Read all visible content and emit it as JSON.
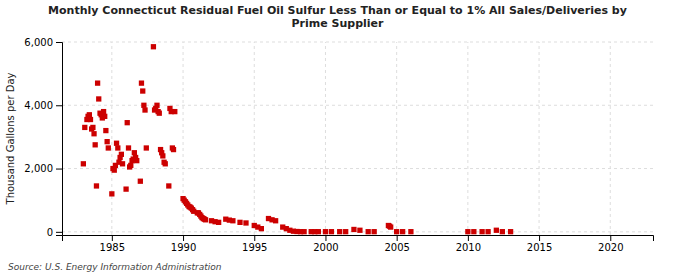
{
  "chart_data": {
    "type": "scatter",
    "title": "Monthly Connecticut Residual Fuel Oil Sulfur Less Than or Equal to 1% All Sales/Deliveries by\nPrime Supplier",
    "ylabel": "Thousand Gallons per Day",
    "source": "Source: U.S. Energy Information Administration",
    "color": "#cc0000",
    "marker": "square",
    "grid": true,
    "xlim": [
      1981.5,
      2023
    ],
    "ylim": [
      -100,
      6000
    ],
    "xticks": [
      1985,
      1990,
      1995,
      2000,
      2005,
      2010,
      2015,
      2020
    ],
    "yticks": [
      0,
      {
        "value": 2000,
        "label": "2,000"
      },
      {
        "value": 4000,
        "label": "4,000"
      },
      {
        "value": 6000,
        "label": "6,000"
      }
    ],
    "x": [
      1983.0,
      1983.1,
      1983.25,
      1983.33,
      1983.42,
      1983.5,
      1983.58,
      1983.67,
      1983.75,
      1983.83,
      1983.92,
      1984.0,
      1984.08,
      1984.17,
      1984.25,
      1984.33,
      1984.42,
      1984.5,
      1984.58,
      1984.67,
      1984.75,
      1985.0,
      1985.08,
      1985.17,
      1985.25,
      1985.33,
      1985.42,
      1985.5,
      1985.58,
      1985.67,
      1985.75,
      1986.0,
      1986.08,
      1986.17,
      1986.25,
      1986.33,
      1986.42,
      1986.5,
      1986.58,
      1986.67,
      1986.75,
      1987.0,
      1987.08,
      1987.17,
      1987.25,
      1987.33,
      1987.42,
      1987.92,
      1988.0,
      1988.08,
      1988.17,
      1988.25,
      1988.33,
      1988.42,
      1988.5,
      1988.58,
      1988.67,
      1988.75,
      1989.0,
      1989.08,
      1989.17,
      1989.25,
      1989.33,
      1989.42,
      1990.0,
      1990.08,
      1990.17,
      1990.25,
      1990.33,
      1990.42,
      1990.5,
      1990.58,
      1990.67,
      1990.75,
      1991.0,
      1991.08,
      1991.17,
      1991.25,
      1991.33,
      1991.42,
      1991.5,
      1991.58,
      1992.0,
      1992.25,
      1992.5,
      1993.0,
      1993.25,
      1993.5,
      1994.0,
      1994.42,
      1995.0,
      1995.25,
      1995.5,
      1996.0,
      1996.25,
      1996.5,
      1997.0,
      1997.25,
      1997.5,
      1997.75,
      1998.0,
      1998.25,
      1998.5,
      1999.0,
      1999.25,
      1999.5,
      2000.0,
      2000.42,
      2001.0,
      2001.42,
      2002.0,
      2002.42,
      2003.0,
      2003.42,
      2004.42,
      2004.5,
      2004.58,
      2005.0,
      2005.42,
      2006.0,
      2010.0,
      2010.42,
      2011.0,
      2011.42,
      2012.0,
      2012.42,
      2013.0
    ],
    "values": [
      2150,
      3300,
      3550,
      3650,
      3700,
      3550,
      3250,
      3300,
      3100,
      2750,
      1450,
      4700,
      4200,
      3750,
      3700,
      3600,
      3800,
      3650,
      3200,
      2850,
      2650,
      1200,
      2000,
      1950,
      2100,
      2800,
      2650,
      2200,
      2350,
      2450,
      2150,
      1350,
      3450,
      2650,
      2050,
      2100,
      2250,
      2300,
      2500,
      2350,
      2250,
      1600,
      4700,
      4450,
      4000,
      3850,
      2650,
      5850,
      3850,
      3900,
      4000,
      3800,
      3750,
      2600,
      2500,
      2400,
      2200,
      2150,
      1450,
      3900,
      3800,
      2650,
      2600,
      3800,
      1050,
      1000,
      950,
      900,
      850,
      800,
      780,
      750,
      700,
      650,
      600,
      600,
      550,
      500,
      450,
      420,
      400,
      380,
      350,
      320,
      300,
      400,
      370,
      350,
      300,
      280,
      200,
      150,
      100,
      420,
      380,
      350,
      150,
      100,
      50,
      20,
      10,
      5,
      5,
      5,
      5,
      5,
      5,
      5,
      5,
      5,
      75,
      50,
      5,
      5,
      200,
      180,
      150,
      5,
      5,
      5,
      5,
      5,
      5,
      5,
      50,
      5,
      5
    ]
  }
}
